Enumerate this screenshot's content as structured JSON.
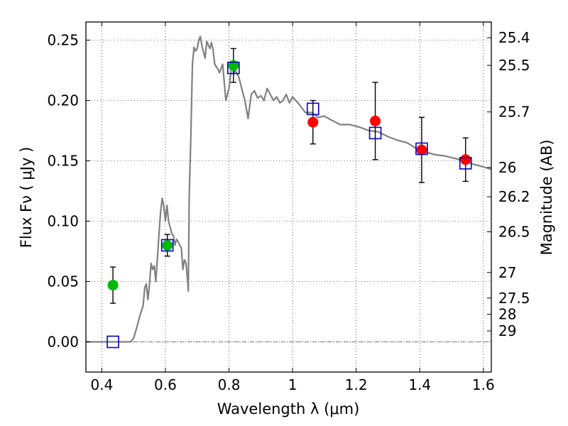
{
  "chart_data": {
    "type": "scatter",
    "xlabel": "Wavelength  λ (μm)",
    "ylabel": "Flux  Fν  ( μJy )",
    "y2label": "Magnitude (AB)",
    "xlim": [
      0.35,
      1.625
    ],
    "ylim": [
      -0.025,
      0.265
    ],
    "xticks": [
      {
        "value": 0.4,
        "label": "0.4"
      },
      {
        "value": 0.6,
        "label": "0.6"
      },
      {
        "value": 0.8,
        "label": "0.8"
      },
      {
        "value": 1.0,
        "label": "1"
      },
      {
        "value": 1.2,
        "label": "1.2"
      },
      {
        "value": 1.4,
        "label": "1.4"
      },
      {
        "value": 1.6,
        "label": "1.6"
      }
    ],
    "yticks": [
      {
        "value": 0.0,
        "label": "0.00"
      },
      {
        "value": 0.05,
        "label": "0.05"
      },
      {
        "value": 0.1,
        "label": "0.10"
      },
      {
        "value": 0.15,
        "label": "0.15"
      },
      {
        "value": 0.2,
        "label": "0.20"
      },
      {
        "value": 0.25,
        "label": "0.25"
      }
    ],
    "y2ticks": [
      {
        "flux": 0.252,
        "label": "25.4"
      },
      {
        "flux": 0.2291,
        "label": "25.5"
      },
      {
        "flux": 0.1905,
        "label": "25.7"
      },
      {
        "flux": 0.1445,
        "label": "26"
      },
      {
        "flux": 0.1202,
        "label": "26.2"
      },
      {
        "flux": 0.0912,
        "label": "26.5"
      },
      {
        "flux": 0.0575,
        "label": "27"
      },
      {
        "flux": 0.0363,
        "label": "27.5"
      },
      {
        "flux": 0.0229,
        "label": "28"
      },
      {
        "flux": 0.0091,
        "label": "29"
      }
    ],
    "grid": true,
    "zero_line": true,
    "series": [
      {
        "kind": "line",
        "color": "#808080",
        "x": [
          0.35,
          0.49,
          0.5,
          0.51,
          0.52,
          0.53,
          0.535,
          0.54,
          0.545,
          0.55,
          0.555,
          0.56,
          0.565,
          0.57,
          0.575,
          0.58,
          0.585,
          0.59,
          0.595,
          0.6,
          0.605,
          0.61,
          0.615,
          0.62,
          0.625,
          0.63,
          0.635,
          0.64,
          0.645,
          0.65,
          0.655,
          0.66,
          0.665,
          0.67,
          0.672,
          0.675,
          0.68,
          0.685,
          0.69,
          0.695,
          0.7,
          0.705,
          0.71,
          0.715,
          0.72,
          0.725,
          0.73,
          0.735,
          0.74,
          0.745,
          0.75,
          0.755,
          0.76,
          0.765,
          0.77,
          0.78,
          0.79,
          0.8,
          0.81,
          0.815,
          0.82,
          0.83,
          0.84,
          0.85,
          0.86,
          0.87,
          0.88,
          0.89,
          0.9,
          0.91,
          0.92,
          0.93,
          0.94,
          0.95,
          0.96,
          0.97,
          0.98,
          0.99,
          1.0,
          1.02,
          1.04,
          1.06,
          1.08,
          1.1,
          1.12,
          1.15,
          1.18,
          1.21,
          1.24,
          1.27,
          1.3,
          1.33,
          1.36,
          1.39,
          1.42,
          1.45,
          1.48,
          1.51,
          1.54,
          1.57,
          1.6,
          1.625
        ],
        "y": [
          0.0,
          0.0,
          0.003,
          0.012,
          0.022,
          0.03,
          0.045,
          0.048,
          0.035,
          0.048,
          0.065,
          0.06,
          0.063,
          0.05,
          0.07,
          0.09,
          0.108,
          0.119,
          0.112,
          0.1,
          0.113,
          0.1,
          0.095,
          0.09,
          0.088,
          0.08,
          0.085,
          0.083,
          0.08,
          0.078,
          0.06,
          0.068,
          0.065,
          0.05,
          0.042,
          0.12,
          0.17,
          0.23,
          0.244,
          0.241,
          0.243,
          0.25,
          0.253,
          0.245,
          0.24,
          0.235,
          0.249,
          0.246,
          0.243,
          0.248,
          0.242,
          0.23,
          0.228,
          0.226,
          0.223,
          0.23,
          0.2,
          0.21,
          0.232,
          0.222,
          0.225,
          0.22,
          0.21,
          0.2,
          0.185,
          0.205,
          0.208,
          0.202,
          0.204,
          0.2,
          0.21,
          0.205,
          0.2,
          0.203,
          0.198,
          0.2,
          0.205,
          0.198,
          0.203,
          0.197,
          0.19,
          0.19,
          0.186,
          0.187,
          0.184,
          0.18,
          0.18,
          0.178,
          0.175,
          0.174,
          0.17,
          0.167,
          0.165,
          0.16,
          0.157,
          0.155,
          0.154,
          0.152,
          0.15,
          0.147,
          0.145,
          0.143
        ]
      },
      {
        "kind": "scatter-errorbar",
        "marker": "circle",
        "color": "#00bb00",
        "x": [
          0.435,
          0.606,
          0.814
        ],
        "y": [
          0.047,
          0.08,
          0.229
        ],
        "err": [
          0.015,
          0.009,
          0.014
        ]
      },
      {
        "kind": "scatter-errorbar",
        "marker": "circle",
        "color": "#ff0000",
        "x": [
          1.064,
          1.26,
          1.406,
          1.544
        ],
        "y": [
          0.182,
          0.183,
          0.159,
          0.151
        ],
        "err": [
          0.018,
          0.032,
          0.027,
          0.018
        ]
      },
      {
        "kind": "scatter",
        "marker": "square",
        "color": "#0000cc",
        "x": [
          0.435,
          0.606,
          0.814,
          1.064,
          1.26,
          1.406,
          1.544
        ],
        "y": [
          0.0,
          0.08,
          0.227,
          0.193,
          0.173,
          0.16,
          0.148
        ]
      }
    ]
  }
}
